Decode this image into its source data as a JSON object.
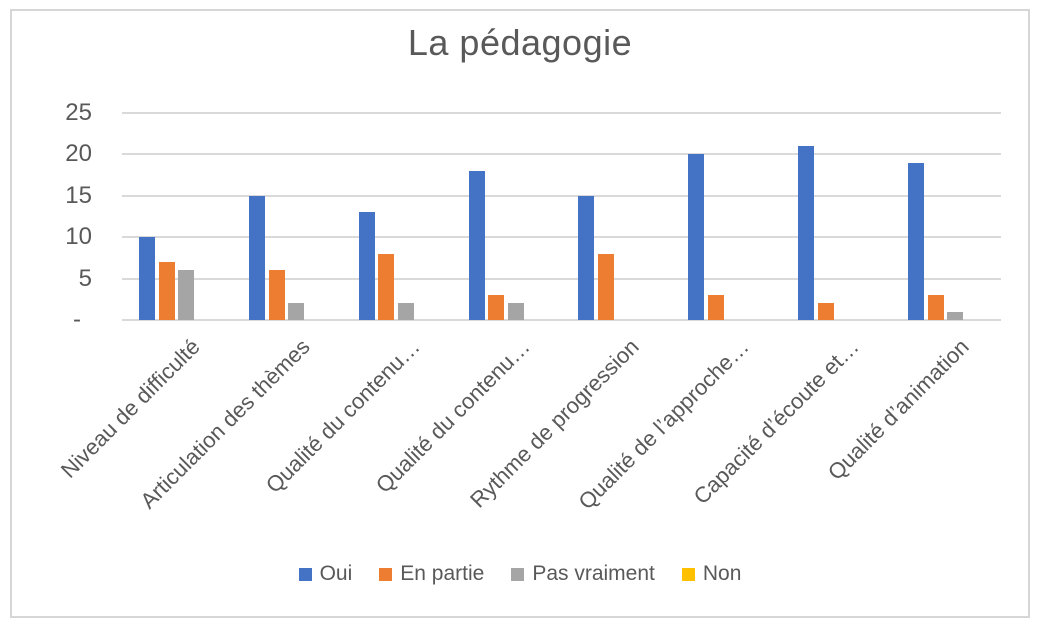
{
  "colors": {
    "background": "#FFFFFF",
    "border": "#D6D6D6",
    "grid": "#D9D9D9",
    "axis": "#D9D9D9",
    "text": "#595959",
    "series_oui": "#4472C4",
    "series_en_partie": "#ED7D31",
    "series_pas_vraiment": "#A5A5A5",
    "series_non": "#FFC000"
  },
  "chart_data": {
    "type": "bar",
    "title": "La pédagogie",
    "categories": [
      "Niveau de difficulté",
      "Articulation des thèmes",
      "Qualité du contenu…",
      "Qualité du contenu…",
      "Rythme de progression",
      "Qualité de l’approche…",
      "Capacité d’écoute et…",
      "Qualité d’animation"
    ],
    "series": [
      {
        "name": "Oui",
        "color": "#4472C4",
        "values": [
          10,
          15,
          13,
          18,
          15,
          20,
          21,
          19
        ]
      },
      {
        "name": "En partie",
        "color": "#ED7D31",
        "values": [
          7,
          6,
          8,
          3,
          8,
          3,
          2,
          3
        ]
      },
      {
        "name": "Pas vraiment",
        "color": "#A5A5A5",
        "values": [
          6,
          2,
          2,
          2,
          0,
          0,
          0,
          1
        ]
      },
      {
        "name": "Non",
        "color": "#FFC000",
        "values": [
          0,
          0,
          0,
          0,
          0,
          0,
          0,
          0
        ]
      }
    ],
    "ylim": [
      0,
      25
    ],
    "ytick_values": [
      0,
      5,
      10,
      15,
      20,
      25
    ],
    "ytick_labels": [
      "-",
      "5",
      "10",
      "15",
      "20",
      "25"
    ],
    "grid": true,
    "legend_position": "bottom",
    "xlabel": "",
    "ylabel": ""
  }
}
